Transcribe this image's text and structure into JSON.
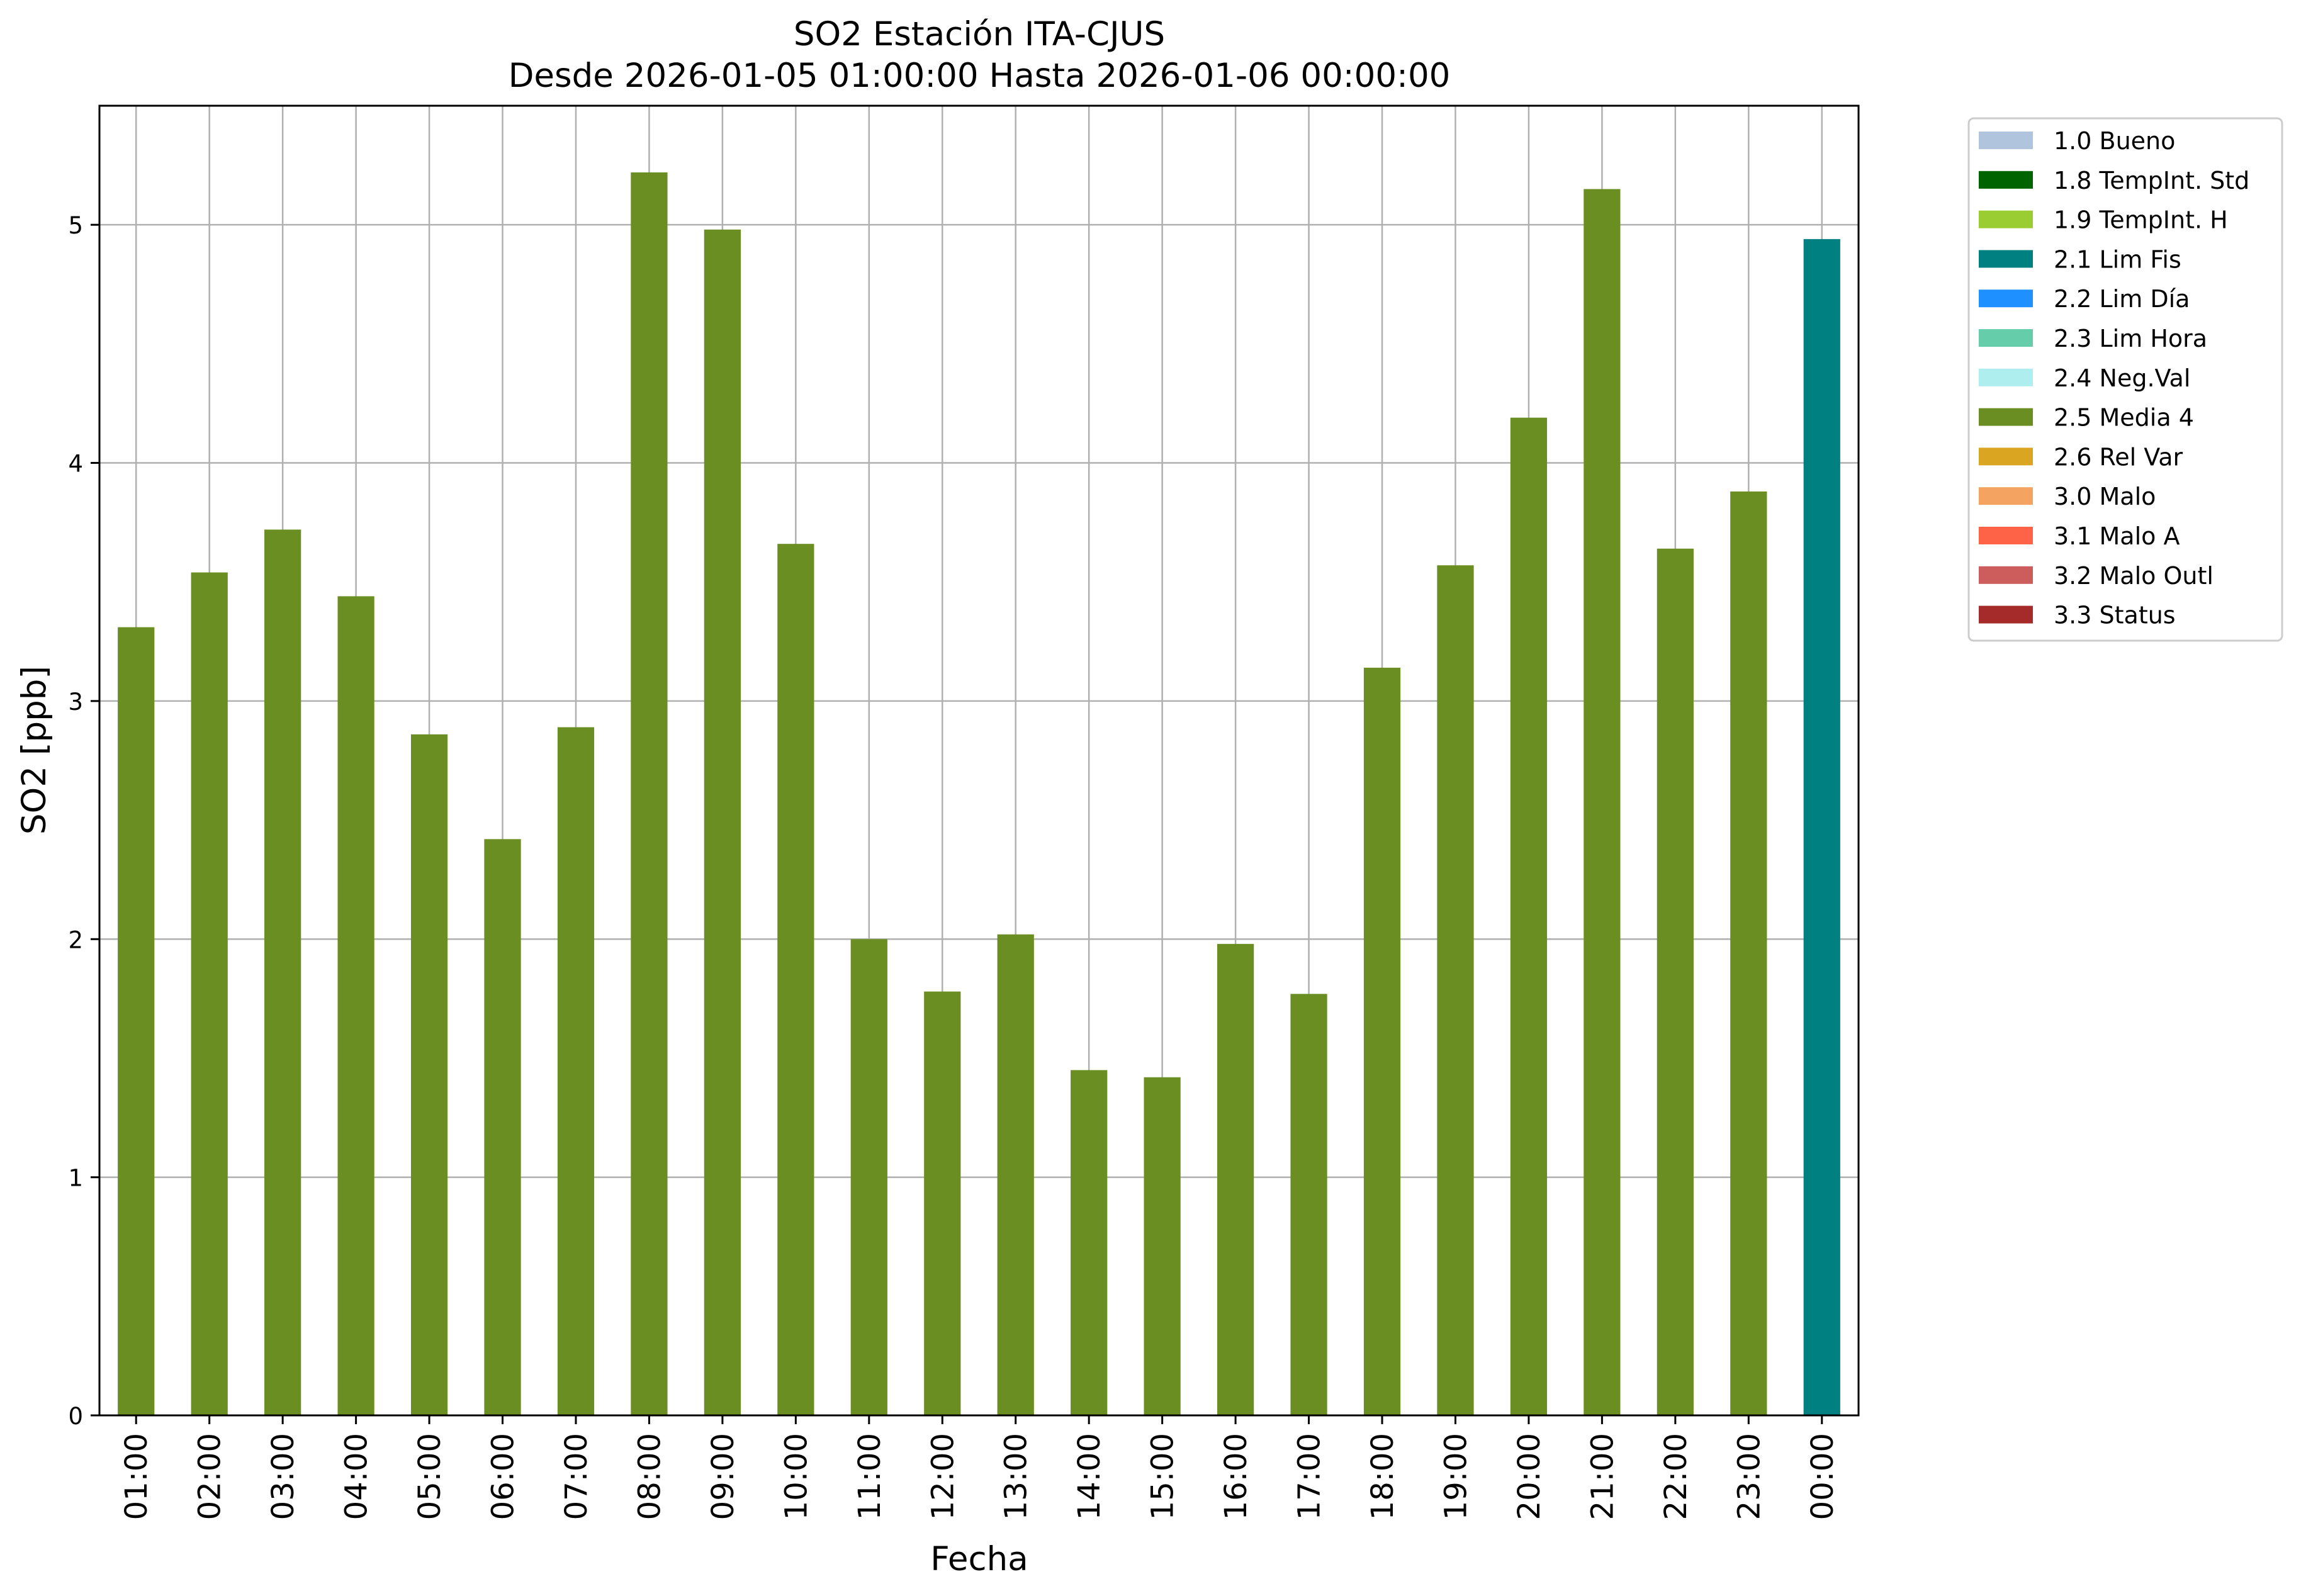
{
  "chart_data": {
    "type": "bar",
    "title": "SO2 Estación ITA-CJUS",
    "subtitle": "Desde 2026-01-05 01:00:00 Hasta 2026-01-06 00:00:00",
    "xlabel": "Fecha",
    "ylabel": "SO2 [ppb]",
    "ylim": [
      0,
      5.5
    ],
    "yticks": [
      0,
      1,
      2,
      3,
      4,
      5
    ],
    "grid": true,
    "legend_position": "outside-right",
    "categories": [
      "01:00",
      "02:00",
      "03:00",
      "04:00",
      "05:00",
      "06:00",
      "07:00",
      "08:00",
      "09:00",
      "10:00",
      "11:00",
      "12:00",
      "13:00",
      "14:00",
      "15:00",
      "16:00",
      "17:00",
      "18:00",
      "19:00",
      "20:00",
      "21:00",
      "22:00",
      "23:00",
      "00:00"
    ],
    "values": [
      3.31,
      3.54,
      3.72,
      3.44,
      2.86,
      2.42,
      2.89,
      5.22,
      4.98,
      3.66,
      2.0,
      1.78,
      2.02,
      1.45,
      1.42,
      1.98,
      1.77,
      3.14,
      3.57,
      4.19,
      5.15,
      3.64,
      3.88,
      4.94
    ],
    "bar_flags": [
      "2.5 Media 4",
      "2.5 Media 4",
      "2.5 Media 4",
      "2.5 Media 4",
      "2.5 Media 4",
      "2.5 Media 4",
      "2.5 Media 4",
      "2.5 Media 4",
      "2.5 Media 4",
      "2.5 Media 4",
      "2.5 Media 4",
      "2.5 Media 4",
      "2.5 Media 4",
      "2.5 Media 4",
      "2.5 Media 4",
      "2.5 Media 4",
      "2.5 Media 4",
      "2.5 Media 4",
      "2.5 Media 4",
      "2.5 Media 4",
      "2.5 Media 4",
      "2.5 Media 4",
      "2.5 Media 4",
      "2.1 Lim Fis"
    ],
    "legend": [
      {
        "label": "1.0 Bueno",
        "color": "#b0c4de"
      },
      {
        "label": "1.8 TempInt. Std",
        "color": "#006400"
      },
      {
        "label": "1.9 TempInt. H",
        "color": "#9acd32"
      },
      {
        "label": "2.1 Lim Fis",
        "color": "#008080"
      },
      {
        "label": "2.2 Lim Día",
        "color": "#1e90ff"
      },
      {
        "label": "2.3 Lim Hora",
        "color": "#66cdaa"
      },
      {
        "label": "2.4 Neg.Val",
        "color": "#afeeee"
      },
      {
        "label": "2.5 Media 4",
        "color": "#6b8e23"
      },
      {
        "label": "2.6 Rel Var",
        "color": "#daa520"
      },
      {
        "label": "3.0 Malo",
        "color": "#f4a460"
      },
      {
        "label": "3.1 Malo A",
        "color": "#ff6347"
      },
      {
        "label": "3.2 Malo Outl",
        "color": "#cd5c5c"
      },
      {
        "label": "3.3 Status",
        "color": "#a52a2a"
      }
    ]
  }
}
